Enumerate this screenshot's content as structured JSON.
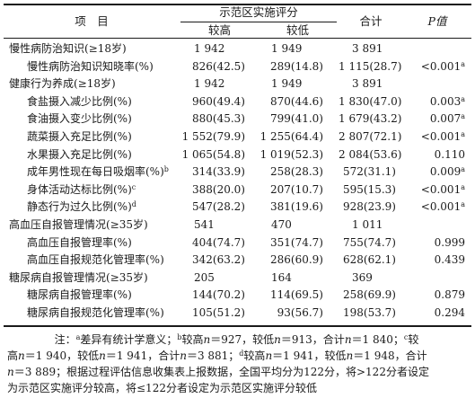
{
  "header": {
    "item": "项　目",
    "group": "示范区实施评分",
    "high": "较高",
    "low": "较低",
    "total": "合计",
    "p": "P值"
  },
  "rows": [
    {
      "label": "慢性病防治知识(≥18岁)",
      "sup": "",
      "indent": false,
      "high": "1 942",
      "low": "1 949",
      "total": "3 891",
      "p": "",
      "p_sup": ""
    },
    {
      "label": "慢性病防治知识知晓率(%)",
      "sup": "",
      "indent": true,
      "high": "826(42.5)",
      "low": "289(14.8)",
      "total": "1 115(28.7)",
      "p": "<0.001",
      "p_sup": "a"
    },
    {
      "label": "健康行为养成(≥18岁)",
      "sup": "",
      "indent": false,
      "high": "1 942",
      "low": "1 949",
      "total": "3 891",
      "p": "",
      "p_sup": ""
    },
    {
      "label": "食盐摄入减少比例(%)",
      "sup": "",
      "indent": true,
      "high": "960(49.4)",
      "low": "870(44.6)",
      "total": "1 830(47.0)",
      "p": "0.003",
      "p_sup": "a"
    },
    {
      "label": "食油摄入变少比例(%)",
      "sup": "",
      "indent": true,
      "high": "880(45.3)",
      "low": "799(41.0)",
      "total": "1 679(43.2)",
      "p": "0.007",
      "p_sup": "a"
    },
    {
      "label": "蔬菜摄入充足比例(%)",
      "sup": "",
      "indent": true,
      "high": "1 552(79.9)",
      "low": "1 255(64.4)",
      "total": "2 807(72.1)",
      "p": "<0.001",
      "p_sup": "a"
    },
    {
      "label": "水果摄入充足比例(%)",
      "sup": "",
      "indent": true,
      "high": "1 065(54.8)",
      "low": "1 019(52.3)",
      "total": "2 084(53.6)",
      "p": "0.110",
      "p_sup": ""
    },
    {
      "label": "成年男性现在每日吸烟率(%)",
      "sup": "b",
      "indent": true,
      "high": "314(33.9)",
      "low": "258(28.3)",
      "total": "572(31.1)",
      "p": "0.009",
      "p_sup": "a"
    },
    {
      "label": "身体活动达标比例(%)",
      "sup": "c",
      "indent": true,
      "high": "388(20.0)",
      "low": "207(10.7)",
      "total": "595(15.3)",
      "p": "<0.001",
      "p_sup": "a"
    },
    {
      "label": "静态行为过久比例(%)",
      "sup": "d",
      "indent": true,
      "high": "547(28.2)",
      "low": "381(19.6)",
      "total": "928(23.9)",
      "p": "<0.001",
      "p_sup": "a"
    },
    {
      "label": "高血压自报管理情况(≥35岁)",
      "sup": "",
      "indent": false,
      "high": "541",
      "low": "470",
      "total": "1 011",
      "p": "",
      "p_sup": ""
    },
    {
      "label": "高血压自报管理率(%)",
      "sup": "",
      "indent": true,
      "high": "404(74.7)",
      "low": "351(74.7)",
      "total": "755(74.7)",
      "p": "0.999",
      "p_sup": ""
    },
    {
      "label": "高血压自报规范化管理率(%)",
      "sup": "",
      "indent": true,
      "high": "342(63.2)",
      "low": "286(60.9)",
      "total": "628(62.1)",
      "p": "0.439",
      "p_sup": ""
    },
    {
      "label": "糖尿病自报管理情况(≥35岁)",
      "sup": "",
      "indent": false,
      "high": "205",
      "low": "164",
      "total": "369",
      "p": "",
      "p_sup": ""
    },
    {
      "label": "糖尿病自报管理率(%)",
      "sup": "",
      "indent": true,
      "high": "144(70.2)",
      "low": "114(69.5)",
      "total": "258(69.9)",
      "p": "0.879",
      "p_sup": ""
    },
    {
      "label": "糖尿病自报规范化管理率(%)",
      "sup": "",
      "indent": true,
      "high": "105(51.2)",
      "low": "93(56.7)",
      "total": "198(53.7)",
      "p": "0.294",
      "p_sup": ""
    }
  ],
  "notes": {
    "l1_a": "注：",
    "l1_sa": "a",
    "l1_b": "差异有统计学意义；",
    "l1_sb": "b",
    "l1_c": "较高",
    "l1_n1": "n",
    "l1_d": "＝927，较低",
    "l1_n2": "n",
    "l1_e": "＝913，合计",
    "l1_n3": "n",
    "l1_f": "＝1 840；",
    "l1_sc": "c",
    "l1_g": "较",
    "l2_a": "高",
    "l2_n1": "n",
    "l2_b": "＝1 940，较低",
    "l2_n2": "n",
    "l2_c": "＝1 941，合计",
    "l2_n3": "n",
    "l2_d": "＝3 881；",
    "l2_sd": "d",
    "l2_e": "较高",
    "l2_n4": "n",
    "l2_f": "＝1 941，较低",
    "l2_n5": "n",
    "l2_g": "＝1 948，合计",
    "l3_n1": "n",
    "l3_a": "＝3 889；根据过程评估信息收集表上报数据，全国平均分为122分，将>122分者设定",
    "l4": "为示范区实施评分较高，将≤122分者设定为示范区实施评分较低"
  }
}
